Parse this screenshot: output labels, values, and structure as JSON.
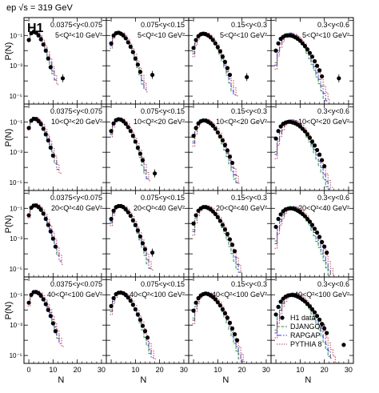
{
  "header": {
    "prefix": "ep ",
    "sqrt": "√s",
    "suffix": " = 319 GeV"
  },
  "experiment_logo": "H1",
  "colors": {
    "data": "#000000",
    "djangoh": "#2a9a3a",
    "rapgap": "#3a3ad0",
    "pythia": "#d03a4a"
  },
  "chart_data": {
    "type": "grid of histograms",
    "xlabel": "N",
    "ylabel": "P(N)",
    "x_range": [
      -2,
      32
    ],
    "x_ticks": [
      "0",
      "10",
      "20",
      "30"
    ],
    "y_scale": "log",
    "y_range": [
      3e-06,
      1.5
    ],
    "y_ticks": [
      "10⁻¹",
      "10⁻³",
      "10⁻⁵"
    ],
    "legend": {
      "position": "bottom-right panel",
      "entries": [
        "H1 data",
        "DJANGOH",
        "RAPGAP",
        "PYTHIA 8"
      ]
    },
    "y_bins": [
      "0.0375<y<0.075",
      "0.075<y<0.15",
      "0.15<y<0.3",
      "0.3<y<0.6"
    ],
    "q2_bins": [
      "5<Q²<10 GeV²",
      "10<Q²<20 GeV²",
      "20<Q²<40 GeV²",
      "40<Q²<100 GeV²"
    ],
    "panels": [
      {
        "row": 0,
        "col": 0,
        "mean": 2.6,
        "nmax": 9,
        "points": [
          [
            0,
            0.05
          ],
          [
            1,
            0.14
          ],
          [
            2,
            0.17
          ],
          [
            3,
            0.15
          ],
          [
            4,
            0.1
          ],
          [
            5,
            0.055
          ],
          [
            6,
            0.025
          ],
          [
            7,
            0.01
          ],
          [
            8,
            0.003
          ],
          [
            9,
            0.0008
          ],
          [
            14,
            0.00015
          ]
        ]
      },
      {
        "row": 0,
        "col": 1,
        "mean": 3.5,
        "nmax": 12,
        "points": [
          [
            0,
            0.03
          ],
          [
            1,
            0.1
          ],
          [
            2,
            0.14
          ],
          [
            3,
            0.15
          ],
          [
            4,
            0.13
          ],
          [
            5,
            0.1
          ],
          [
            6,
            0.065
          ],
          [
            7,
            0.035
          ],
          [
            8,
            0.018
          ],
          [
            9,
            0.008
          ],
          [
            10,
            0.003
          ],
          [
            11,
            0.0012
          ],
          [
            12,
            0.0004
          ],
          [
            17,
            0.00025
          ]
        ]
      },
      {
        "row": 0,
        "col": 2,
        "mean": 4.6,
        "nmax": 15,
        "points": [
          [
            0,
            0.015
          ],
          [
            1,
            0.05
          ],
          [
            2,
            0.09
          ],
          [
            3,
            0.12
          ],
          [
            4,
            0.13
          ],
          [
            5,
            0.12
          ],
          [
            6,
            0.1
          ],
          [
            7,
            0.075
          ],
          [
            8,
            0.05
          ],
          [
            9,
            0.03
          ],
          [
            10,
            0.017
          ],
          [
            11,
            0.009
          ],
          [
            12,
            0.004
          ],
          [
            13,
            0.0018
          ],
          [
            14,
            0.0007
          ],
          [
            15,
            0.00025
          ],
          [
            22,
            0.00018
          ]
        ]
      },
      {
        "row": 0,
        "col": 3,
        "mean": 6.2,
        "nmax": 19,
        "points": [
          [
            0,
            0.01
          ],
          [
            1,
            0.03
          ],
          [
            2,
            0.06
          ],
          [
            3,
            0.08
          ],
          [
            4,
            0.1
          ],
          [
            5,
            0.1
          ],
          [
            6,
            0.1
          ],
          [
            7,
            0.09
          ],
          [
            8,
            0.075
          ],
          [
            9,
            0.06
          ],
          [
            10,
            0.045
          ],
          [
            11,
            0.03
          ],
          [
            12,
            0.02
          ],
          [
            13,
            0.012
          ],
          [
            14,
            0.007
          ],
          [
            15,
            0.004
          ],
          [
            16,
            0.002
          ],
          [
            17,
            0.001
          ],
          [
            18,
            0.0005
          ],
          [
            19,
            0.0002
          ],
          [
            26,
            0.00015
          ]
        ]
      },
      {
        "row": 1,
        "col": 0,
        "mean": 2.9,
        "nmax": 10,
        "points": [
          [
            0,
            0.04
          ],
          [
            1,
            0.12
          ],
          [
            2,
            0.16
          ],
          [
            3,
            0.15
          ],
          [
            4,
            0.11
          ],
          [
            5,
            0.07
          ],
          [
            6,
            0.035
          ],
          [
            7,
            0.015
          ],
          [
            8,
            0.006
          ],
          [
            9,
            0.002
          ],
          [
            10,
            0.0006
          ]
        ]
      },
      {
        "row": 1,
        "col": 1,
        "mean": 3.8,
        "nmax": 13,
        "points": [
          [
            0,
            0.025
          ],
          [
            1,
            0.08
          ],
          [
            2,
            0.13
          ],
          [
            3,
            0.15
          ],
          [
            4,
            0.14
          ],
          [
            5,
            0.11
          ],
          [
            6,
            0.075
          ],
          [
            7,
            0.045
          ],
          [
            8,
            0.025
          ],
          [
            9,
            0.012
          ],
          [
            10,
            0.005
          ],
          [
            11,
            0.002
          ],
          [
            12,
            0.0008
          ],
          [
            13,
            0.0003
          ],
          [
            18,
            4e-05
          ]
        ]
      },
      {
        "row": 1,
        "col": 2,
        "mean": 5.0,
        "nmax": 16,
        "points": [
          [
            0,
            0.012
          ],
          [
            1,
            0.04
          ],
          [
            2,
            0.08
          ],
          [
            3,
            0.11
          ],
          [
            4,
            0.125
          ],
          [
            5,
            0.12
          ],
          [
            6,
            0.1
          ],
          [
            7,
            0.08
          ],
          [
            8,
            0.055
          ],
          [
            9,
            0.035
          ],
          [
            10,
            0.02
          ],
          [
            11,
            0.011
          ],
          [
            12,
            0.006
          ],
          [
            13,
            0.003
          ],
          [
            14,
            0.0013
          ],
          [
            15,
            0.0005
          ],
          [
            16,
            0.0002
          ]
        ]
      },
      {
        "row": 1,
        "col": 3,
        "mean": 6.6,
        "nmax": 20,
        "points": [
          [
            0,
            0.008
          ],
          [
            1,
            0.025
          ],
          [
            2,
            0.05
          ],
          [
            3,
            0.075
          ],
          [
            4,
            0.09
          ],
          [
            5,
            0.1
          ],
          [
            6,
            0.1
          ],
          [
            7,
            0.09
          ],
          [
            8,
            0.08
          ],
          [
            9,
            0.065
          ],
          [
            10,
            0.05
          ],
          [
            11,
            0.035
          ],
          [
            12,
            0.024
          ],
          [
            13,
            0.015
          ],
          [
            14,
            0.009
          ],
          [
            15,
            0.005
          ],
          [
            16,
            0.0028
          ],
          [
            17,
            0.0014
          ],
          [
            18,
            0.0007
          ],
          [
            19,
            0.0003
          ],
          [
            20,
            0.00012
          ]
        ]
      },
      {
        "row": 2,
        "col": 0,
        "mean": 3.1,
        "nmax": 11,
        "points": [
          [
            0,
            0.035
          ],
          [
            1,
            0.11
          ],
          [
            2,
            0.15
          ],
          [
            3,
            0.15
          ],
          [
            4,
            0.12
          ],
          [
            5,
            0.08
          ],
          [
            6,
            0.045
          ],
          [
            7,
            0.02
          ],
          [
            8,
            0.008
          ],
          [
            9,
            0.003
          ],
          [
            10,
            0.001
          ],
          [
            11,
            0.0003
          ]
        ]
      },
      {
        "row": 2,
        "col": 1,
        "mean": 4.1,
        "nmax": 14,
        "points": [
          [
            0,
            0.02
          ],
          [
            1,
            0.07
          ],
          [
            2,
            0.12
          ],
          [
            3,
            0.14
          ],
          [
            4,
            0.14
          ],
          [
            5,
            0.12
          ],
          [
            6,
            0.085
          ],
          [
            7,
            0.055
          ],
          [
            8,
            0.032
          ],
          [
            9,
            0.016
          ],
          [
            10,
            0.008
          ],
          [
            11,
            0.0035
          ],
          [
            12,
            0.0014
          ],
          [
            13,
            0.0005
          ],
          [
            14,
            0.0002
          ],
          [
            17,
            0.00012
          ]
        ]
      },
      {
        "row": 2,
        "col": 2,
        "mean": 5.3,
        "nmax": 17,
        "points": [
          [
            0,
            0.01
          ],
          [
            1,
            0.035
          ],
          [
            2,
            0.07
          ],
          [
            3,
            0.1
          ],
          [
            4,
            0.12
          ],
          [
            5,
            0.12
          ],
          [
            6,
            0.105
          ],
          [
            7,
            0.085
          ],
          [
            8,
            0.062
          ],
          [
            9,
            0.042
          ],
          [
            10,
            0.026
          ],
          [
            11,
            0.015
          ],
          [
            12,
            0.008
          ],
          [
            13,
            0.004
          ],
          [
            14,
            0.002
          ],
          [
            15,
            0.0009
          ],
          [
            16,
            0.0004
          ],
          [
            17,
            0.00015
          ]
        ]
      },
      {
        "row": 2,
        "col": 3,
        "mean": 7.0,
        "nmax": 21,
        "points": [
          [
            0,
            0.006
          ],
          [
            1,
            0.02
          ],
          [
            2,
            0.04
          ],
          [
            3,
            0.065
          ],
          [
            4,
            0.085
          ],
          [
            5,
            0.095
          ],
          [
            6,
            0.1
          ],
          [
            7,
            0.095
          ],
          [
            8,
            0.085
          ],
          [
            9,
            0.07
          ],
          [
            10,
            0.055
          ],
          [
            11,
            0.042
          ],
          [
            12,
            0.03
          ],
          [
            13,
            0.02
          ],
          [
            14,
            0.013
          ],
          [
            15,
            0.008
          ],
          [
            16,
            0.0045
          ],
          [
            17,
            0.0025
          ],
          [
            18,
            0.0013
          ],
          [
            19,
            0.0006
          ],
          [
            20,
            0.0003
          ],
          [
            21,
            0.00012
          ]
        ]
      },
      {
        "row": 3,
        "col": 0,
        "mean": 3.3,
        "nmax": 11,
        "points": [
          [
            0,
            0.03
          ],
          [
            1,
            0.1
          ],
          [
            2,
            0.15
          ],
          [
            3,
            0.15
          ],
          [
            4,
            0.125
          ],
          [
            5,
            0.085
          ],
          [
            6,
            0.05
          ],
          [
            7,
            0.024
          ],
          [
            8,
            0.01
          ],
          [
            9,
            0.004
          ],
          [
            10,
            0.0013
          ],
          [
            11,
            0.0004
          ]
        ]
      },
      {
        "row": 3,
        "col": 1,
        "mean": 4.4,
        "nmax": 15,
        "points": [
          [
            0,
            0.018
          ],
          [
            1,
            0.06
          ],
          [
            2,
            0.11
          ],
          [
            3,
            0.135
          ],
          [
            4,
            0.14
          ],
          [
            5,
            0.125
          ],
          [
            6,
            0.095
          ],
          [
            7,
            0.065
          ],
          [
            8,
            0.04
          ],
          [
            9,
            0.022
          ],
          [
            10,
            0.011
          ],
          [
            11,
            0.005
          ],
          [
            12,
            0.0022
          ],
          [
            13,
            0.0009
          ],
          [
            14,
            0.0004
          ],
          [
            15,
            0.00015
          ]
        ]
      },
      {
        "row": 3,
        "col": 2,
        "mean": 5.6,
        "nmax": 18,
        "points": [
          [
            0,
            0.009
          ],
          [
            1,
            0.03
          ],
          [
            2,
            0.06
          ],
          [
            3,
            0.09
          ],
          [
            4,
            0.11
          ],
          [
            5,
            0.12
          ],
          [
            6,
            0.11
          ],
          [
            7,
            0.09
          ],
          [
            8,
            0.07
          ],
          [
            9,
            0.05
          ],
          [
            10,
            0.032
          ],
          [
            11,
            0.02
          ],
          [
            12,
            0.011
          ],
          [
            13,
            0.006
          ],
          [
            14,
            0.003
          ],
          [
            15,
            0.0014
          ],
          [
            16,
            0.0006
          ],
          [
            17,
            0.00025
          ],
          [
            18,
            0.0001
          ]
        ]
      },
      {
        "row": 3,
        "col": 3,
        "mean": 7.4,
        "nmax": 28,
        "points": [
          [
            0,
            0.005
          ],
          [
            1,
            0.016
          ],
          [
            2,
            0.035
          ],
          [
            3,
            0.055
          ],
          [
            4,
            0.075
          ],
          [
            5,
            0.09
          ],
          [
            6,
            0.095
          ],
          [
            7,
            0.095
          ],
          [
            8,
            0.088
          ],
          [
            9,
            0.075
          ],
          [
            10,
            0.062
          ],
          [
            11,
            0.048
          ],
          [
            12,
            0.036
          ],
          [
            13,
            0.025
          ],
          [
            14,
            0.017
          ],
          [
            15,
            0.011
          ],
          [
            16,
            0.007
          ],
          [
            17,
            0.004
          ],
          [
            18,
            0.0023
          ],
          [
            19,
            0.0012
          ],
          [
            20,
            0.0006
          ],
          [
            21,
            0.0003
          ],
          [
            28,
            5e-05
          ]
        ]
      }
    ]
  }
}
